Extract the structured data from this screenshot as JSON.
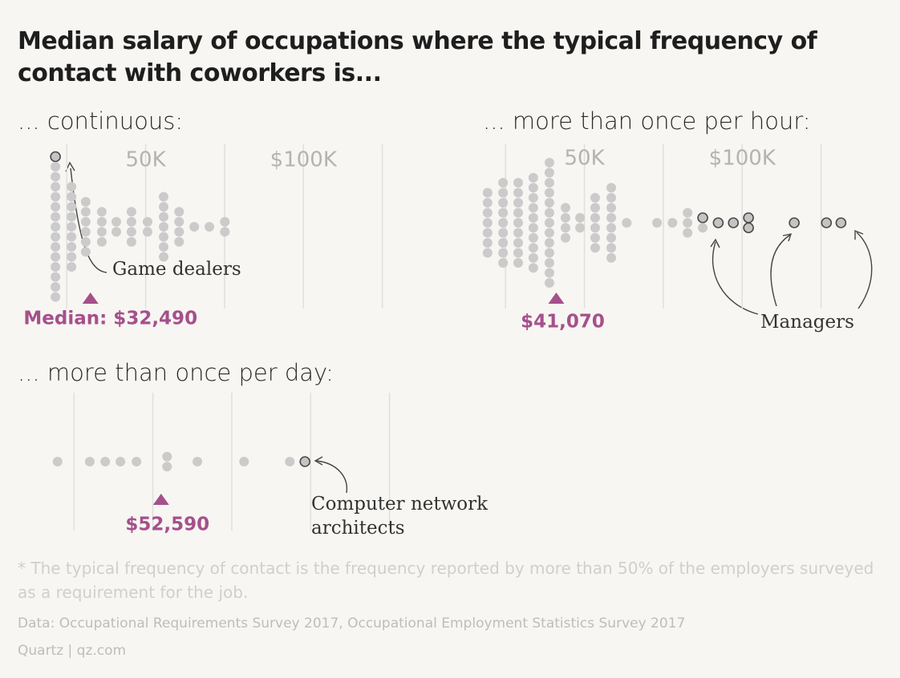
{
  "title": "Median salary of occupations where the typical frequency of contact with coworkers is...",
  "chart_data": [
    {
      "type": "beeswarm",
      "subtitle": "... continuous:",
      "xlim": [
        14000,
        134000
      ],
      "xgrid": [
        25000,
        50000,
        75000,
        100000,
        125000
      ],
      "xticks": [
        {
          "value": 50000,
          "label": "50K"
        },
        {
          "value": 100000,
          "label": "$100K"
        }
      ],
      "x": [
        21400,
        26500,
        31000,
        36100,
        40700,
        45500,
        50600,
        55700,
        60600,
        65400,
        70200,
        75100
      ],
      "counts": [
        15,
        9,
        6,
        4,
        2,
        4,
        2,
        7,
        4,
        1,
        1,
        2
      ],
      "outlined": [
        1,
        0,
        0,
        0,
        0,
        0,
        0,
        0,
        0,
        0,
        0,
        0
      ],
      "median": 32490,
      "median_label": "Median: $32,490",
      "annotation": [
        "Game dealers"
      ]
    },
    {
      "type": "beeswarm",
      "subtitle": "... more than once per hour:",
      "xlim": [
        14000,
        134000
      ],
      "xgrid": [
        25000,
        50000,
        75000,
        100000,
        125000
      ],
      "xticks": [
        {
          "value": 50000,
          "label": "50K"
        },
        {
          "value": 100000,
          "label": "$100K"
        }
      ],
      "x": [
        19300,
        24200,
        29000,
        33800,
        38900,
        44000,
        48600,
        53400,
        58500,
        63400,
        73000,
        77900,
        82700,
        87500,
        92400,
        97200,
        102000,
        116500,
        126700,
        131300
      ],
      "counts": [
        7,
        9,
        9,
        10,
        13,
        4,
        2,
        6,
        8,
        1,
        1,
        1,
        3,
        2,
        1,
        1,
        2,
        1,
        1,
        1
      ],
      "outlined": [
        0,
        0,
        0,
        0,
        0,
        0,
        0,
        0,
        0,
        0,
        0,
        0,
        0,
        1,
        1,
        1,
        2,
        1,
        1,
        1
      ],
      "median": 41070,
      "median_label": "$41,070",
      "annotation": [
        "Managers"
      ]
    },
    {
      "type": "beeswarm",
      "subtitle": "... more than once per day:",
      "xlim": [
        14000,
        134000
      ],
      "xgrid": [
        25000,
        50000,
        75000,
        100000,
        125000
      ],
      "xticks": [],
      "x": [
        19800,
        30000,
        34900,
        39700,
        44800,
        54500,
        64100,
        78900,
        93400,
        98200
      ],
      "counts": [
        1,
        1,
        1,
        1,
        1,
        2,
        1,
        1,
        1,
        1
      ],
      "outlined": [
        0,
        0,
        0,
        0,
        0,
        0,
        0,
        0,
        0,
        1
      ],
      "median": 52590,
      "median_label": "$52,590",
      "annotation": [
        "Computer network",
        "architects"
      ]
    }
  ],
  "footnote": "* The typical frequency of contact is the frequency reported by more than 50% of the employers surveyed as a requirement for the job.",
  "source": "Data: Occupational Requirements Survey 2017, Occupational Employment Statistics Survey 2017",
  "credit": "Quartz | qz.com"
}
